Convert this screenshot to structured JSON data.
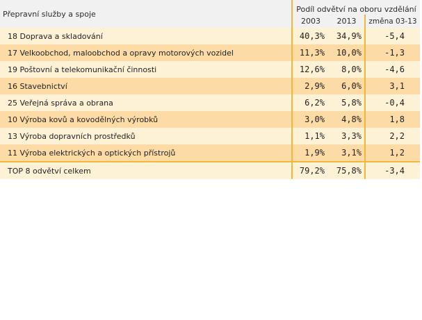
{
  "table": {
    "header": {
      "category_label": "Přepravní služby a spoje",
      "group_label": "Podíl odvětví na oboru vzdělání",
      "col_2003": "2003",
      "col_2013": "2013",
      "col_change": "změna 03-13"
    },
    "rows": [
      {
        "label": "18 Doprava a skladování",
        "v2003": "40,3%",
        "v2013": "34,9%",
        "change": "-5,4"
      },
      {
        "label": "17 Velkoobchod, maloobchod a opravy motorových vozidel",
        "v2003": "11,3%",
        "v2013": "10,0%",
        "change": "-1,3"
      },
      {
        "label": "19 Poštovní a telekomunikační činnosti",
        "v2003": "12,6%",
        "v2013": "8,0%",
        "change": "-4,6"
      },
      {
        "label": "16 Stavebnictví",
        "v2003": "2,9%",
        "v2013": "6,0%",
        "change": "3,1"
      },
      {
        "label": "25 Veřejná správa a obrana",
        "v2003": "6,2%",
        "v2013": "5,8%",
        "change": "-0,4"
      },
      {
        "label": "10 Výroba kovů a kovodělných výrobků",
        "v2003": "3,0%",
        "v2013": "4,8%",
        "change": "1,8"
      },
      {
        "label": "13 Výroba dopravních prostředků",
        "v2003": "1,1%",
        "v2013": "3,3%",
        "change": "2,2"
      },
      {
        "label": "11 Výroba elektrických a optických přístrojů",
        "v2003": "1,9%",
        "v2013": "3,1%",
        "change": "1,2"
      }
    ],
    "total": {
      "label": "TOP 8 odvětví celkem",
      "v2003": "79,2%",
      "v2013": "75,8%",
      "change": "-3,4"
    }
  },
  "colors": {
    "row_light": "#fef2d6",
    "row_dark": "#fddba6",
    "accent_border": "#f0b73c",
    "header_bg": "#f1f1f1"
  }
}
